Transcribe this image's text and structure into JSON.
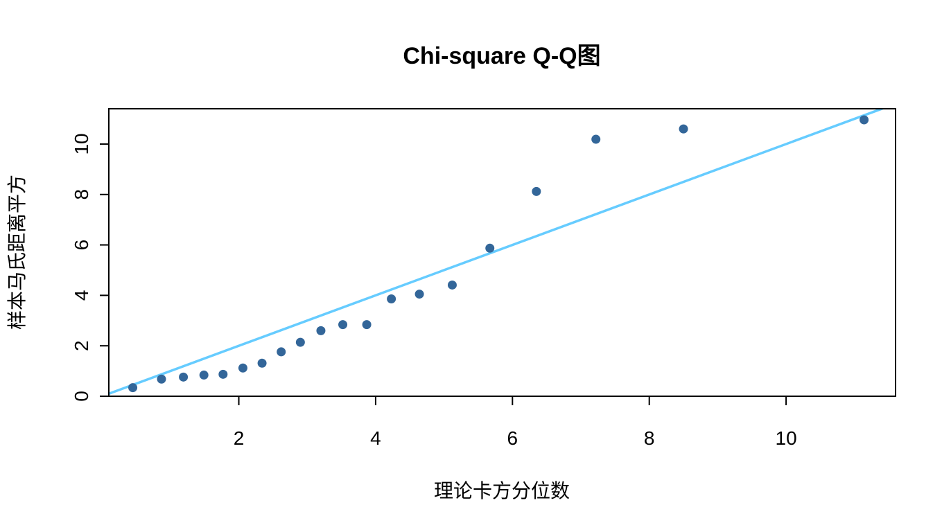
{
  "chart_data": {
    "type": "scatter",
    "title": "Chi-square Q-Q图",
    "xlabel": "理论卡方分位数",
    "ylabel": "样本马氏距离平方",
    "xlim": [
      0.1,
      11.6
    ],
    "ylim": [
      0,
      11.4
    ],
    "x_ticks": [
      2,
      4,
      6,
      8,
      10
    ],
    "y_ticks": [
      0,
      2,
      4,
      6,
      8,
      10
    ],
    "grid": false,
    "series": [
      {
        "x": [
          0.45,
          0.87,
          1.19,
          1.49,
          1.77,
          2.06,
          2.34,
          2.62,
          2.9,
          3.2,
          3.52,
          3.87,
          4.23,
          4.64,
          5.12,
          5.67,
          6.35,
          7.22,
          8.5,
          11.14
        ],
        "y": [
          0.34,
          0.68,
          0.76,
          0.84,
          0.87,
          1.12,
          1.31,
          1.76,
          2.14,
          2.6,
          2.84,
          2.84,
          3.86,
          4.05,
          4.41,
          5.87,
          8.12,
          10.19,
          10.6,
          10.96
        ]
      }
    ],
    "reference_line": {
      "intercept": 0,
      "slope": 1
    },
    "colors": {
      "points": "#336699",
      "line": "#66CCFF",
      "frame": "#000000"
    }
  }
}
